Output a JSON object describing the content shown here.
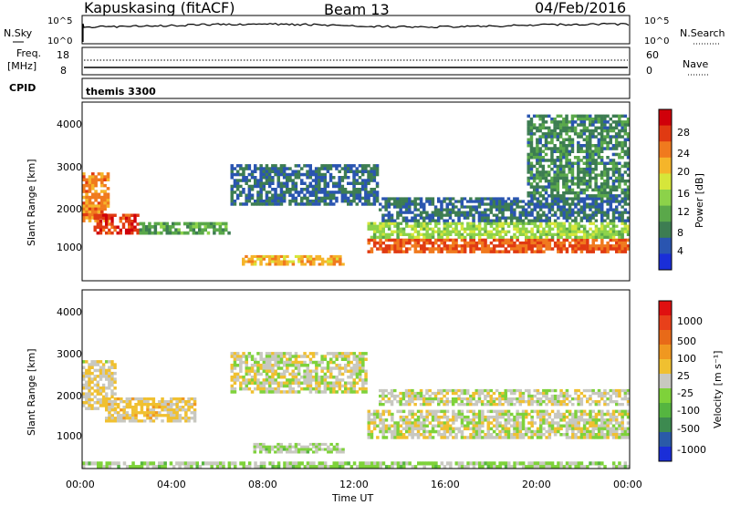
{
  "header": {
    "station": "Kapuskasing (fitACF)",
    "beam": "Beam 13",
    "date": "04/Feb/2016"
  },
  "noise_panel": {
    "left_label": "N.Sky",
    "right_label": "N.Search",
    "left_ticks": [
      "10^5",
      "10^0"
    ],
    "right_ticks": [
      "10^5",
      "10^0"
    ]
  },
  "freq_panel": {
    "left_label_line1": "Freq.",
    "left_label_line2": "[MHz]",
    "left_ticks": [
      "18",
      "8"
    ],
    "right_label": "Nave",
    "right_ticks": [
      "60",
      "0"
    ]
  },
  "cpid_panel": {
    "label": "CPID",
    "value": "themis 3300"
  },
  "power_panel": {
    "ylabel": "Slant Range [km]",
    "yticks": [
      "4000",
      "3000",
      "2000",
      "1000"
    ],
    "colorbar_label": "Power [dB]",
    "colorbar_ticks": [
      "28",
      "24",
      "20",
      "16",
      "12",
      "8",
      "4"
    ],
    "colors": [
      "#1a2ed8",
      "#2a55b0",
      "#3d7d52",
      "#5aa84a",
      "#8cd24a",
      "#d6e63a",
      "#f5b52a",
      "#f07a1e",
      "#e03a12",
      "#d0000a"
    ]
  },
  "velocity_panel": {
    "ylabel": "Slant Range [km]",
    "yticks": [
      "4000",
      "3000",
      "2000",
      "1000"
    ],
    "colorbar_label": "Velocity [m s⁻¹]",
    "colorbar_ticks": [
      "1000",
      "500",
      "100",
      "25",
      "-25",
      "-100",
      "-500",
      "-1000"
    ],
    "colors": [
      "#1a2ed8",
      "#2a5aa8",
      "#3d8a50",
      "#55b540",
      "#7ed23a",
      "#c8c8c0",
      "#f0c030",
      "#f09820",
      "#e86a18",
      "#e8401a",
      "#e01010"
    ]
  },
  "xaxis": {
    "label": "Time UT",
    "ticks": [
      "00:00",
      "04:00",
      "08:00",
      "12:00",
      "16:00",
      "20:00",
      "00:00"
    ]
  },
  "chart_data": [
    {
      "type": "heatmap",
      "title": "Power",
      "xlabel": "Time UT",
      "ylabel": "Slant Range [km]",
      "xlim": [
        0,
        24
      ],
      "ylim": [
        180,
        4500
      ],
      "zlabel": "Power [dB]",
      "zlim": [
        0,
        30
      ],
      "regions": [
        {
          "t": [
            0.0,
            1.2
          ],
          "r": [
            1600,
            2800
          ],
          "value": 22
        },
        {
          "t": [
            0.5,
            2.5
          ],
          "r": [
            1300,
            1800
          ],
          "value": 26
        },
        {
          "t": [
            2.5,
            6.5
          ],
          "r": [
            1300,
            1600
          ],
          "value": 10
        },
        {
          "t": [
            6.5,
            13.0
          ],
          "r": [
            2000,
            3000
          ],
          "value": 6
        },
        {
          "t": [
            7.0,
            11.5
          ],
          "r": [
            550,
            800
          ],
          "value": 20
        },
        {
          "t": [
            12.5,
            24.0
          ],
          "r": [
            850,
            1200
          ],
          "value": 24
        },
        {
          "t": [
            12.5,
            24.0
          ],
          "r": [
            1200,
            1600
          ],
          "value": 14
        },
        {
          "t": [
            13.0,
            24.0
          ],
          "r": [
            1600,
            2200
          ],
          "value": 6
        },
        {
          "t": [
            19.5,
            24.0
          ],
          "r": [
            2200,
            4200
          ],
          "value": 8
        }
      ]
    },
    {
      "type": "heatmap",
      "title": "Velocity",
      "xlabel": "Time UT",
      "ylabel": "Slant Range [km]",
      "xlim": [
        0,
        24
      ],
      "ylim": [
        180,
        4500
      ],
      "zlabel": "Velocity [m s⁻¹]",
      "zlim": [
        -1000,
        1000
      ],
      "regions": [
        {
          "t": [
            0.0,
            1.5
          ],
          "r": [
            1600,
            2800
          ],
          "value": 80
        },
        {
          "t": [
            1.0,
            5.0
          ],
          "r": [
            1300,
            1900
          ],
          "value": 120
        },
        {
          "t": [
            6.5,
            12.5
          ],
          "r": [
            2000,
            3000
          ],
          "value": 0
        },
        {
          "t": [
            7.5,
            11.5
          ],
          "r": [
            550,
            800
          ],
          "value": -100
        },
        {
          "t": [
            12.5,
            24.0
          ],
          "r": [
            900,
            1600
          ],
          "value": 0
        },
        {
          "t": [
            13.0,
            24.0
          ],
          "r": [
            1700,
            2100
          ],
          "value": 0
        },
        {
          "t": [
            0.0,
            24.0
          ],
          "r": [
            180,
            350
          ],
          "value": -120
        }
      ]
    }
  ]
}
